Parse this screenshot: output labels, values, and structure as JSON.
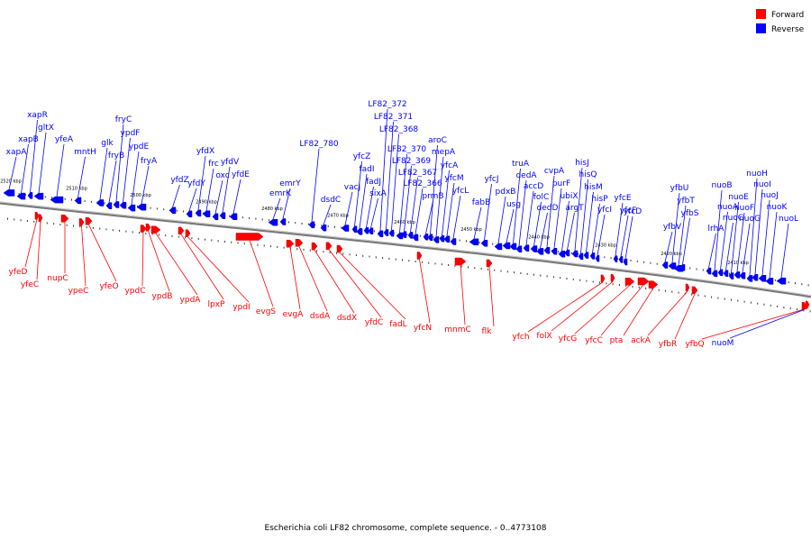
{
  "caption": "Escherichia coli LF82 chromosome, complete sequence. - 0..4773108",
  "legend": [
    {
      "label": "Forward",
      "color": "#ff0000"
    },
    {
      "label": "Reverse",
      "color": "#0000ff"
    }
  ],
  "colors": {
    "forward": "#ff0000",
    "reverse": "#0000ff",
    "forward_dark": "#cc0000",
    "reverse_dark": "#0000cc",
    "backbone": "#555555"
  },
  "scale_labels": [
    "2520 kbp",
    "2510 kbp",
    "2500 kbp",
    "2490 kbp",
    "2480 kbp",
    "2470 kbp",
    "2460 kbp",
    "2450 kbp",
    "2440 kbp",
    "2430 kbp",
    "2420 kbp",
    "2410 kbp"
  ],
  "reverse_genes": [
    "xapA",
    "xapB",
    "xapR",
    "gltX",
    "yfeA",
    "mntH",
    "glk",
    "fryB",
    "fryC",
    "ypdF",
    "ypdE",
    "fryA",
    "yfdZ",
    "yfdY",
    "yfdX",
    "frc",
    "oxc",
    "yfdV",
    "yfdE",
    "emrK",
    "emrY",
    "LF82_780",
    "dsdC",
    "vacJ",
    "yfcZ",
    "fadI",
    "fadJ",
    "sixA",
    "LF82_372",
    "LF82_371",
    "LF82_368",
    "LF82_370",
    "LF82_369",
    "LF82_367",
    "LF82_366",
    "prmB",
    "aroC",
    "mepA",
    "yfcA",
    "yfcM",
    "yfcL",
    "fabB",
    "yfcJ",
    "pdxB",
    "usg",
    "truA",
    "dedA",
    "accD",
    "folC",
    "dedD",
    "cvpA",
    "purF",
    "ubiX",
    "argT",
    "hisJ",
    "hisQ",
    "hisM",
    "hisP",
    "yfcI",
    "yfcE",
    "yfcF",
    "yfcD",
    "yfbV",
    "yfbU",
    "yfbT",
    "yfbS",
    "lrhA",
    "nuoB",
    "nuoA",
    "nuoC",
    "nuoE",
    "nuoF",
    "nuoG",
    "nuoH",
    "nuoI",
    "nuoJ",
    "nuoK",
    "nuoL"
  ],
  "forward_genes": [
    "yfeD",
    "yfeC",
    "nupC",
    "ypeC",
    "yfeO",
    "ypdC",
    "ypdB",
    "ypdA",
    "lpxP",
    "ypdI",
    "evgS",
    "evgA",
    "dsdA",
    "dsdX",
    "yfdC",
    "fadL",
    "yfcN",
    "mnmC",
    "flk",
    "yfch",
    "folX",
    "yfcG",
    "yfcC",
    "pta",
    "ackA",
    "yfbR",
    "yfbQ",
    "nuoM"
  ]
}
